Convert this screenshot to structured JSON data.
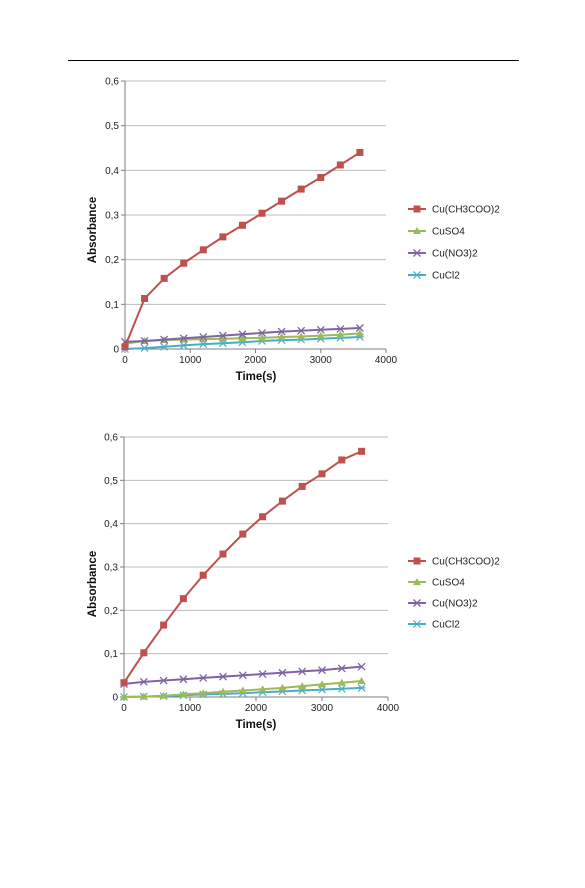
{
  "chart_data": [
    {
      "type": "line",
      "xlabel": "Time(s)",
      "ylabel": "Absorbance",
      "xlim": [
        0,
        4000
      ],
      "ylim": [
        0,
        0.6
      ],
      "xticks": [
        0,
        1000,
        2000,
        3000,
        4000
      ],
      "xtick_labels": [
        "0",
        "1000",
        "2000",
        "3000",
        "4000"
      ],
      "yticks": [
        0,
        0.1,
        0.2,
        0.3,
        0.4,
        0.5,
        0.6
      ],
      "ytick_labels": [
        "0",
        "0,1",
        "0,2",
        "0,3",
        "0,4",
        "0,5",
        "0,6"
      ],
      "grid": "horizontal",
      "legend_position": "right",
      "x": [
        0,
        300,
        600,
        900,
        1200,
        1500,
        1800,
        2100,
        2400,
        2700,
        3000,
        3300,
        3600
      ],
      "series": [
        {
          "name": "Cu(CH3COO)2",
          "color": "#c0504d",
          "marker": "square",
          "values": [
            0.005,
            0.113,
            0.158,
            0.192,
            0.222,
            0.251,
            0.277,
            0.304,
            0.331,
            0.358,
            0.384,
            0.412,
            0.44
          ]
        },
        {
          "name": "CuSO4",
          "color": "#9bbb59",
          "marker": "triangle",
          "values": [
            0.012,
            0.018,
            0.02,
            0.021,
            0.022,
            0.023,
            0.024,
            0.025,
            0.027,
            0.028,
            0.03,
            0.032,
            0.035
          ]
        },
        {
          "name": "Cu(NO3)2",
          "color": "#8064a2",
          "marker": "x",
          "values": [
            0.016,
            0.018,
            0.021,
            0.024,
            0.027,
            0.03,
            0.033,
            0.036,
            0.039,
            0.041,
            0.043,
            0.045,
            0.047
          ]
        },
        {
          "name": "CuCl2",
          "color": "#4bacc6",
          "marker": "star",
          "values": [
            0.0,
            0.002,
            0.005,
            0.008,
            0.011,
            0.013,
            0.015,
            0.018,
            0.02,
            0.021,
            0.023,
            0.025,
            0.027
          ]
        }
      ]
    },
    {
      "type": "line",
      "xlabel": "Time(s)",
      "ylabel": "Absorbance",
      "xlim": [
        0,
        4000
      ],
      "ylim": [
        0,
        0.6
      ],
      "xticks": [
        0,
        1000,
        2000,
        3000,
        4000
      ],
      "xtick_labels": [
        "0",
        "1000",
        "2000",
        "3000",
        "4000"
      ],
      "yticks": [
        0,
        0.1,
        0.2,
        0.3,
        0.4,
        0.5,
        0.6
      ],
      "ytick_labels": [
        "0",
        "0,1",
        "0,2",
        "0,3",
        "0,4",
        "0,5",
        "0,6"
      ],
      "grid": "horizontal",
      "legend_position": "right",
      "x": [
        0,
        300,
        600,
        900,
        1200,
        1500,
        1800,
        2100,
        2400,
        2700,
        3000,
        3300,
        3600
      ],
      "series": [
        {
          "name": "Cu(CH3COO)2",
          "color": "#c0504d",
          "marker": "square",
          "values": [
            0.033,
            0.102,
            0.166,
            0.227,
            0.281,
            0.33,
            0.376,
            0.416,
            0.452,
            0.486,
            0.515,
            0.547,
            0.567
          ]
        },
        {
          "name": "CuSO4",
          "color": "#9bbb59",
          "marker": "triangle",
          "values": [
            0.0,
            0.001,
            0.003,
            0.006,
            0.009,
            0.012,
            0.015,
            0.018,
            0.021,
            0.025,
            0.029,
            0.033,
            0.037
          ]
        },
        {
          "name": "Cu(NO3)2",
          "color": "#8064a2",
          "marker": "x",
          "values": [
            0.03,
            0.035,
            0.038,
            0.041,
            0.044,
            0.047,
            0.05,
            0.053,
            0.056,
            0.059,
            0.062,
            0.066,
            0.07
          ]
        },
        {
          "name": "CuCl2",
          "color": "#4bacc6",
          "marker": "star",
          "values": [
            0.0,
            0.001,
            0.002,
            0.004,
            0.006,
            0.007,
            0.009,
            0.011,
            0.013,
            0.015,
            0.017,
            0.019,
            0.021
          ]
        }
      ]
    }
  ]
}
